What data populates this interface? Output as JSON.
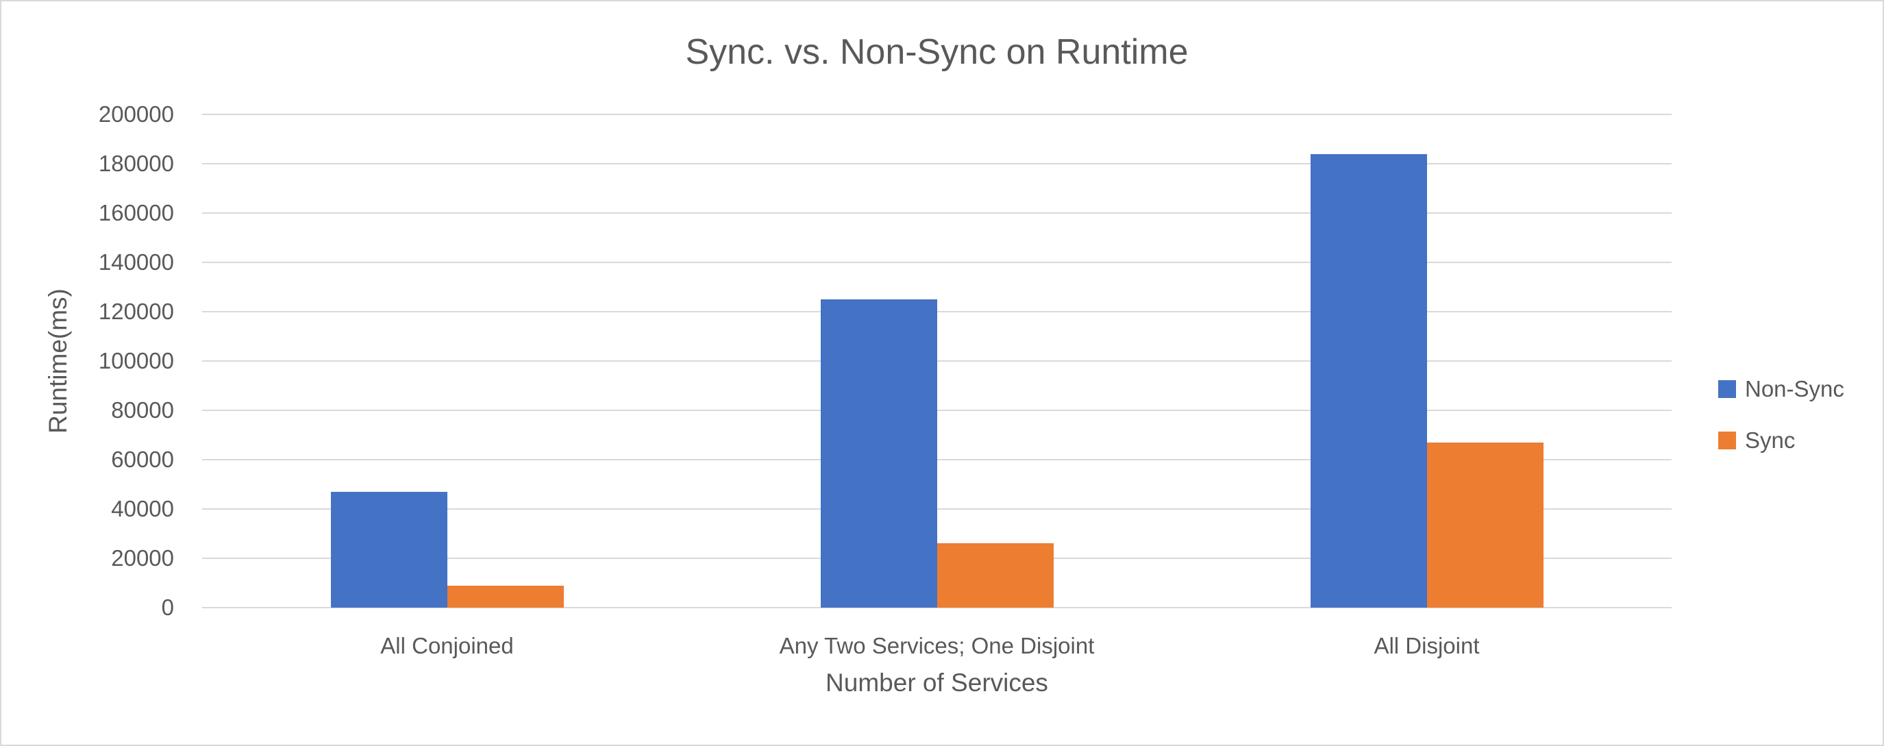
{
  "chart_data": {
    "type": "bar",
    "title": "Sync. vs. Non-Sync on Runtime",
    "xlabel": "Number of Services",
    "ylabel": "Runtime(ms)",
    "categories": [
      "All Conjoined",
      "Any Two Services; One Disjoint",
      "All Disjoint"
    ],
    "series": [
      {
        "name": "Non-Sync",
        "color": "#4472C4",
        "values": [
          47000,
          125000,
          184000
        ]
      },
      {
        "name": "Sync",
        "color": "#ED7D31",
        "values": [
          9000,
          26000,
          67000
        ]
      }
    ],
    "ylim": [
      0,
      200000
    ],
    "ytick_step": 20000,
    "ytick_labels": [
      "0",
      "20000",
      "40000",
      "60000",
      "80000",
      "100000",
      "120000",
      "140000",
      "160000",
      "180000",
      "200000"
    ],
    "grid": true,
    "legend_position": "right",
    "gridline_color": "#D9D9D9",
    "text_color": "#595959",
    "background_color": "#FFFFFF"
  }
}
